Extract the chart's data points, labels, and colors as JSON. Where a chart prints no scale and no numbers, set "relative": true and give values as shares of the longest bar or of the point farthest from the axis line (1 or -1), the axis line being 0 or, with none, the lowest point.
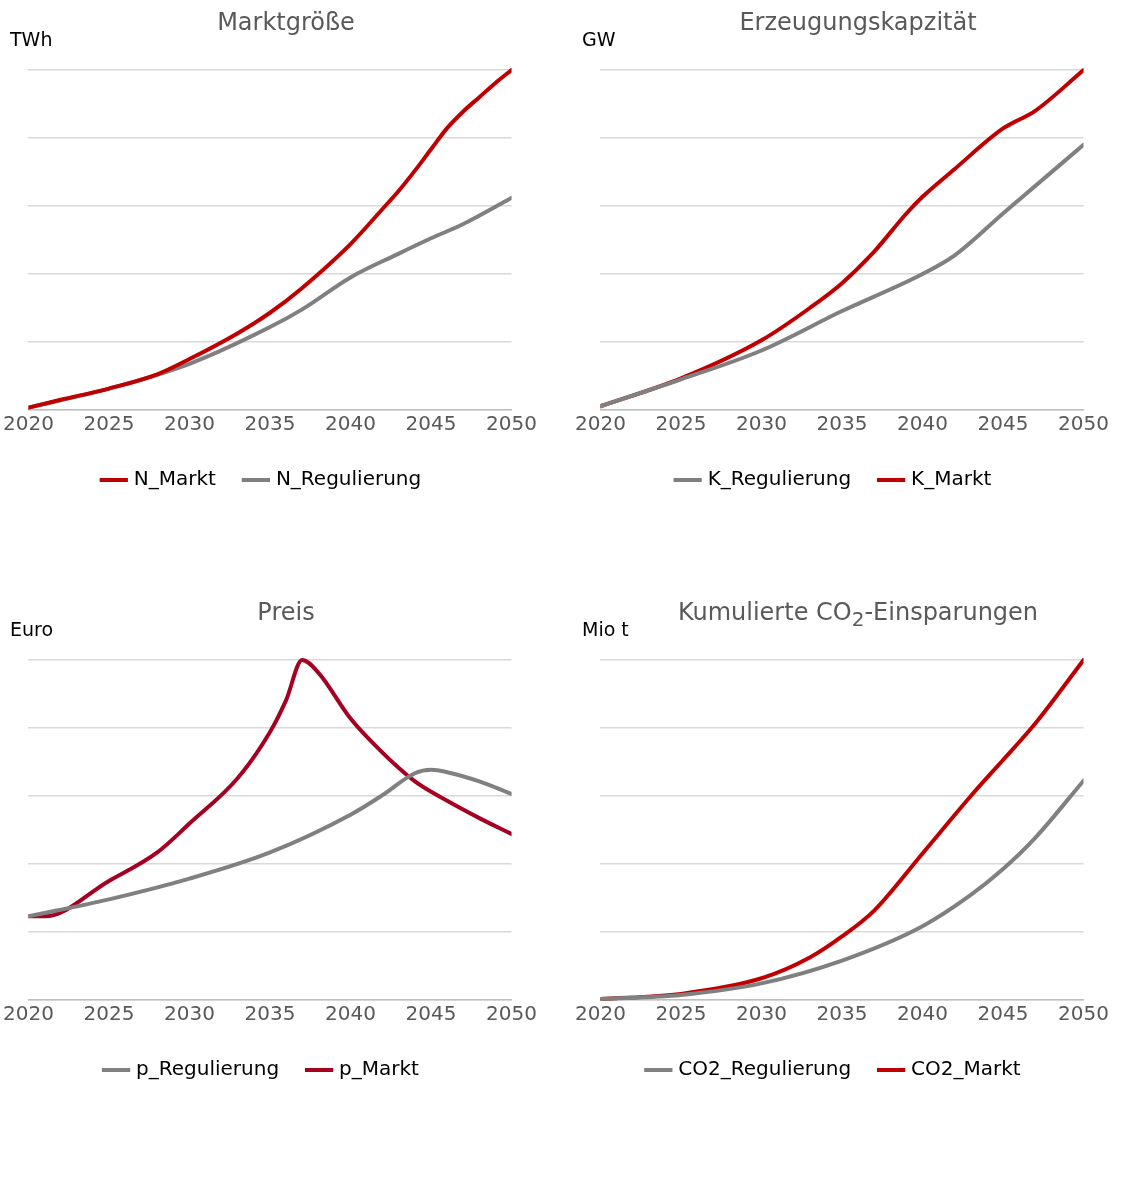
{
  "chart_data": [
    {
      "type": "line",
      "title": "Marktgröße",
      "ylabel": "TWh",
      "relative": true,
      "xlim": [
        2020,
        2050
      ],
      "xticks": [
        2020,
        2025,
        2030,
        2035,
        2040,
        2045,
        2050
      ],
      "grid": "y",
      "legend": "bottom",
      "marker": "none",
      "line_style": "solid",
      "series": [
        {
          "name": "N_Markt",
          "color": "#c00000",
          "x": [
            2020,
            2022,
            2025,
            2028,
            2030,
            2033,
            2035,
            2037,
            2040,
            2042,
            2043,
            2044,
            2045,
            2046,
            2047,
            2048,
            2049,
            2050
          ],
          "values": [
            0.007,
            0.03,
            0.063,
            0.105,
            0.15,
            0.226,
            0.286,
            0.359,
            0.488,
            0.592,
            0.645,
            0.704,
            0.767,
            0.829,
            0.878,
            0.92,
            0.962,
            1
          ]
        },
        {
          "name": "N_Regulierung",
          "color": "#808080",
          "x": [
            2020,
            2025,
            2030,
            2035,
            2037,
            2040,
            2043,
            2045,
            2047,
            2050
          ],
          "values": [
            0.007,
            0.063,
            0.136,
            0.244,
            0.296,
            0.39,
            0.46,
            0.505,
            0.547,
            0.624
          ]
        }
      ]
    },
    {
      "type": "line",
      "title": "Erzeugungskapzität",
      "ylabel": "GW",
      "relative": true,
      "xlim": [
        2020,
        2050
      ],
      "xticks": [
        2020,
        2025,
        2030,
        2035,
        2040,
        2045,
        2050
      ],
      "grid": "y",
      "legend": "bottom",
      "marker": "none",
      "line_style": "solid",
      "series": [
        {
          "name": "K_Regulierung",
          "color": "#808080",
          "x": [
            2020,
            2025,
            2030,
            2035,
            2040,
            2042,
            2045,
            2050
          ],
          "values": [
            0.011,
            0.09,
            0.175,
            0.291,
            0.4,
            0.455,
            0.578,
            0.78
          ]
        },
        {
          "name": "K_Markt",
          "color": "#c00000",
          "x": [
            2020,
            2025,
            2030,
            2033,
            2035,
            2037,
            2039,
            2040,
            2042,
            2045,
            2047,
            2050
          ],
          "values": [
            0.011,
            0.093,
            0.205,
            0.3,
            0.373,
            0.466,
            0.578,
            0.627,
            0.709,
            0.828,
            0.88,
            1
          ]
        }
      ]
    },
    {
      "type": "line",
      "title": "Preis",
      "ylabel": "Euro",
      "relative": true,
      "xlim": [
        2020,
        2050
      ],
      "xticks": [
        2020,
        2025,
        2030,
        2035,
        2040,
        2045,
        2050
      ],
      "grid": "y",
      "legend": "bottom",
      "marker": "none",
      "line_style": "solid",
      "series": [
        {
          "name": "p_Regulierung",
          "color": "#808080",
          "x": [
            2020,
            2025,
            2030,
            2035,
            2040,
            2042,
            2044,
            2045,
            2046,
            2048,
            2050
          ],
          "values": [
            0.246,
            0.296,
            0.357,
            0.434,
            0.545,
            0.603,
            0.667,
            0.677,
            0.67,
            0.643,
            0.606
          ]
        },
        {
          "name": "p_Markt",
          "color": "#a50021",
          "x": [
            2020,
            2021,
            2025,
            2028,
            2030,
            2033,
            2035,
            2036,
            2037,
            2038,
            2040,
            2042,
            2044,
            2046,
            2048,
            2050
          ],
          "values": [
            0.246,
            0.246,
            0.35,
            0.434,
            0.519,
            0.653,
            0.788,
            0.882,
            1,
            0.963,
            0.828,
            0.727,
            0.643,
            0.586,
            0.535,
            0.488
          ]
        }
      ]
    },
    {
      "type": "line",
      "title": "Kumulierte CO$_{2}$-Einsparungen",
      "ylabel": "Mio t",
      "relative": true,
      "xlim": [
        2020,
        2050
      ],
      "xticks": [
        2020,
        2025,
        2030,
        2035,
        2040,
        2045,
        2050
      ],
      "grid": "y",
      "legend": "bottom",
      "marker": "none",
      "line_style": "solid",
      "series": [
        {
          "name": "CO2_Regulierung",
          "color": "#808080",
          "x": [
            2020,
            2025,
            2030,
            2035,
            2040,
            2043,
            2045,
            2047,
            2050
          ],
          "values": [
            0.003,
            0.015,
            0.049,
            0.116,
            0.217,
            0.309,
            0.385,
            0.477,
            0.645
          ]
        },
        {
          "name": "CO2_Markt",
          "color": "#c00000",
          "x": [
            2020,
            2025,
            2030,
            2033,
            2035,
            2037,
            2040,
            2043,
            2045,
            2047,
            2050
          ],
          "values": [
            0.003,
            0.018,
            0.064,
            0.125,
            0.187,
            0.263,
            0.431,
            0.6,
            0.706,
            0.813,
            1
          ]
        }
      ]
    }
  ]
}
